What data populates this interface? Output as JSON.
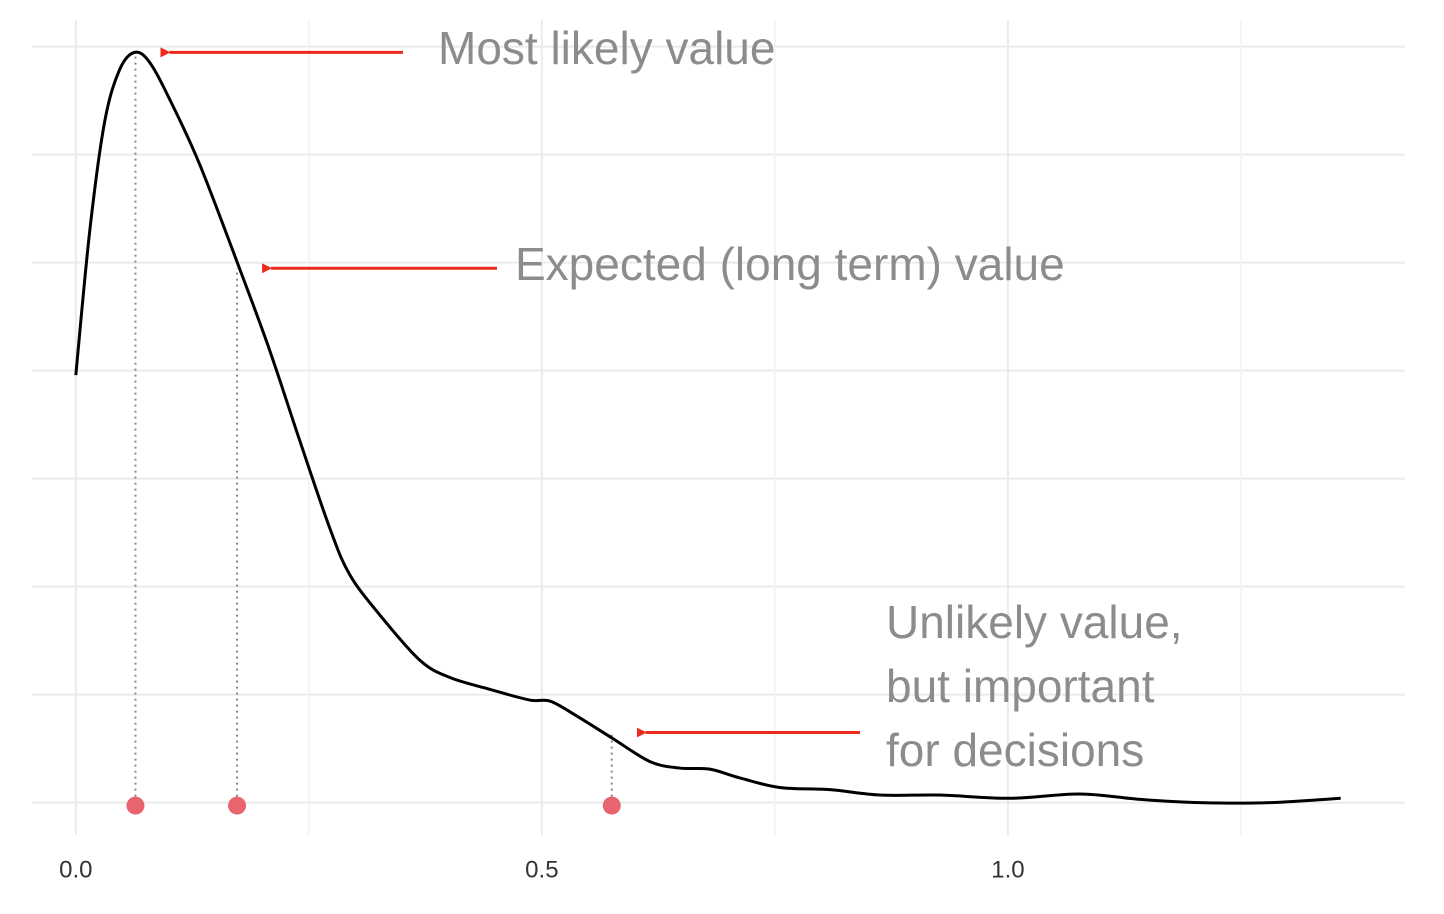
{
  "chart_data": {
    "type": "line",
    "x": [
      0.0,
      0.015,
      0.031,
      0.047,
      0.063,
      0.079,
      0.101,
      0.133,
      0.176,
      0.208,
      0.24,
      0.273,
      0.294,
      0.326,
      0.369,
      0.401,
      0.444,
      0.487,
      0.509,
      0.536,
      0.575,
      0.616,
      0.648,
      0.68,
      0.712,
      0.755,
      0.809,
      0.863,
      0.927,
      1.002,
      1.077,
      1.142,
      1.206,
      1.281,
      1.357
    ],
    "values": [
      3.96,
      5.3,
      6.31,
      6.79,
      6.95,
      6.86,
      6.51,
      5.91,
      4.94,
      4.19,
      3.36,
      2.53,
      2.11,
      1.74,
      1.32,
      1.16,
      1.05,
      0.95,
      0.94,
      0.81,
      0.6,
      0.38,
      0.32,
      0.31,
      0.23,
      0.14,
      0.12,
      0.07,
      0.07,
      0.04,
      0.08,
      0.03,
      0,
      0,
      0.04
    ],
    "color": "#000000",
    "xlim": [
      -0.047,
      1.426
    ],
    "ylim": [
      -0.3,
      7.25
    ],
    "xticks": [
      {
        "value": 0,
        "label": "0.0"
      },
      {
        "value": 0.5,
        "label": "0.5"
      },
      {
        "value": 1,
        "label": "1.0"
      }
    ],
    "x_minor_grid": [
      0.25,
      0.75,
      1.25
    ],
    "grid": true,
    "markers": {
      "color": "#e8646f",
      "x": [
        0.064,
        0.173,
        0.575
      ],
      "y": [
        0,
        0,
        0
      ]
    },
    "annotations": [
      {
        "text": [
          "Most likely value"
        ],
        "x": 0.064,
        "y": 6.95
      },
      {
        "text": [
          "Expected (long term) value"
        ],
        "x": 0.173,
        "y": 4.95
      },
      {
        "text": [
          "Unlikely value,",
          "but important",
          "for decisions"
        ],
        "x": 0.575,
        "y": 0.65
      }
    ],
    "annotation_color": "#8c8c8c",
    "arrow_color": "#ee2a1e"
  }
}
